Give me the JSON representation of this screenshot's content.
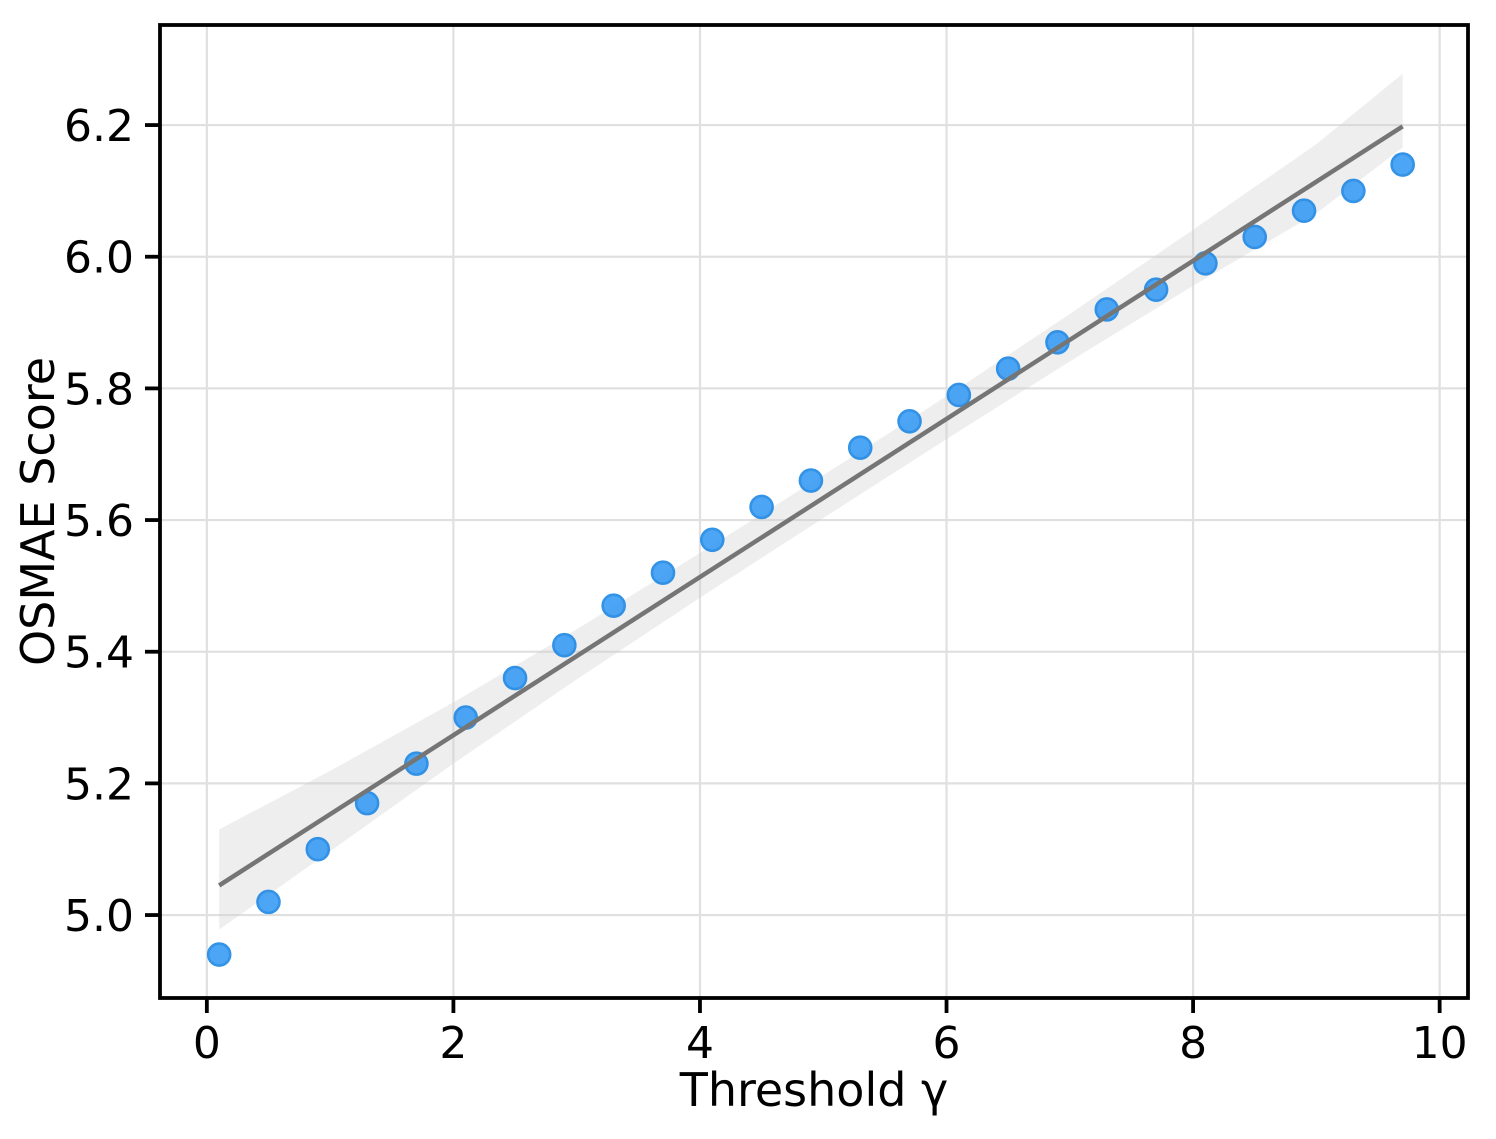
{
  "chart_data": {
    "type": "scatter",
    "xlabel": "Threshold γ",
    "ylabel": "OSMAE Score",
    "x_ticks": [
      "0",
      "2",
      "4",
      "6",
      "8",
      "10"
    ],
    "x_tick_values": [
      0,
      2,
      4,
      6,
      8,
      10
    ],
    "y_ticks": [
      "5.0",
      "5.2",
      "5.4",
      "5.6",
      "5.8",
      "6.0",
      "6.2"
    ],
    "y_tick_values": [
      5.0,
      5.2,
      5.4,
      5.6,
      5.8,
      6.0,
      6.2
    ],
    "xlim": [
      -0.38,
      10.23
    ],
    "ylim": [
      4.874,
      6.352
    ],
    "grid": true,
    "legend": false,
    "series": [
      {
        "name": "observations",
        "type": "scatter",
        "x": [
          0.1,
          0.5,
          0.9,
          1.3,
          1.7,
          2.1,
          2.5,
          2.9,
          3.3,
          3.7,
          4.1,
          4.5,
          4.9,
          5.3,
          5.7,
          6.1,
          6.5,
          6.9,
          7.3,
          7.7,
          8.1,
          8.5,
          8.9,
          9.3,
          9.7
        ],
        "y": [
          4.94,
          5.02,
          5.1,
          5.17,
          5.23,
          5.3,
          5.36,
          5.41,
          5.47,
          5.52,
          5.57,
          5.62,
          5.66,
          5.71,
          5.75,
          5.79,
          5.83,
          5.87,
          5.92,
          5.95,
          5.99,
          6.03,
          6.07,
          6.1,
          6.14
        ]
      },
      {
        "name": "linear-fit",
        "type": "line",
        "x": [
          0.1,
          9.7
        ],
        "y": [
          5.045,
          6.198
        ]
      },
      {
        "name": "confidence-band",
        "type": "band",
        "x": [
          0.1,
          1.0,
          2.0,
          3.0,
          4.0,
          5.0,
          6.0,
          7.0,
          8.0,
          9.0,
          9.7
        ],
        "lo": [
          4.978,
          5.097,
          5.23,
          5.358,
          5.482,
          5.603,
          5.723,
          5.841,
          5.956,
          6.066,
          6.166
        ],
        "hi": [
          5.13,
          5.219,
          5.323,
          5.434,
          5.55,
          5.668,
          5.788,
          5.913,
          6.041,
          6.171,
          6.278
        ]
      }
    ],
    "colors": {
      "marker_fill": "#399cf4",
      "marker_edge": "#1e88e5",
      "fit_line": "#757575",
      "band": "#cfcfcf",
      "grid": "#e0e0e0",
      "spine": "#000000",
      "background": "#ffffff"
    }
  }
}
